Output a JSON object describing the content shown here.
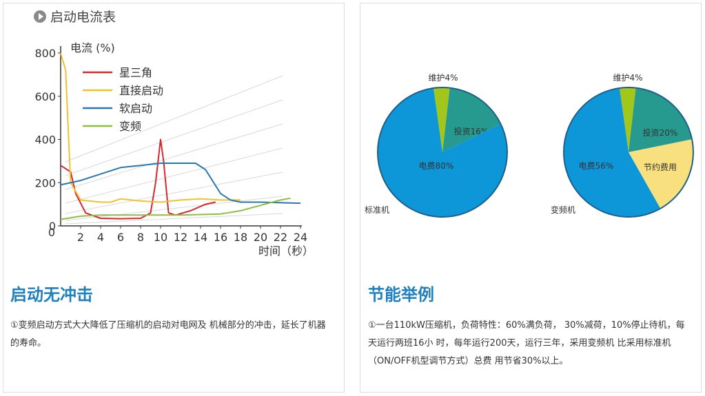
{
  "left": {
    "chart_heading": "启动电流表",
    "section_title": "启动无冲击",
    "description": "①变频启动方式大大降低了压缩机的启动对电网及 机械部分的冲击，延长了机器的寿命。"
  },
  "right": {
    "section_title": "节能举例",
    "description": "①一台110kW压缩机，负荷特性：60%满负荷， 30%减荷，10%停止待机，每天运行两班16小 时，每年运行200天，运行三年，采用变频机 比采用标准机（ON/OFF机型调节方式）总费 用节省30%以上。"
  },
  "chart_data": [
    {
      "type": "line",
      "title": "",
      "xlabel": "时间（秒）",
      "ylabel": "电流 (%)",
      "xlim": [
        0,
        24
      ],
      "ylim": [
        0,
        800
      ],
      "x_ticks": [
        "2",
        "4",
        "6",
        "8",
        "10",
        "12",
        "14",
        "16",
        "18",
        "20",
        "22",
        "24"
      ],
      "y_ticks": [
        "0",
        "200",
        "400",
        "600",
        "800"
      ],
      "legend_position": "top-left",
      "series": [
        {
          "name": "星三角",
          "color": "#d7262e",
          "points": [
            [
              0,
              280
            ],
            [
              1,
              250
            ],
            [
              1.5,
              150
            ],
            [
              2.5,
              60
            ],
            [
              4,
              35
            ],
            [
              6,
              33
            ],
            [
              8,
              35
            ],
            [
              9,
              60
            ],
            [
              9.5,
              200
            ],
            [
              10,
              400
            ],
            [
              10.3,
              300
            ],
            [
              10.8,
              60
            ],
            [
              11.5,
              50
            ],
            [
              13,
              70
            ],
            [
              14.5,
              100
            ],
            [
              15.5,
              110
            ]
          ]
        },
        {
          "name": "直接启动",
          "color": "#f2c12e",
          "points": [
            [
              0,
              800
            ],
            [
              0.5,
              720
            ],
            [
              0.8,
              400
            ],
            [
              1,
              200
            ],
            [
              2,
              120
            ],
            [
              4,
              110
            ],
            [
              5,
              110
            ],
            [
              6,
              125
            ],
            [
              8,
              115
            ],
            [
              10,
              110
            ],
            [
              12,
              120
            ],
            [
              14,
              125
            ],
            [
              16,
              120
            ],
            [
              18,
              120
            ]
          ]
        },
        {
          "name": "软启动",
          "color": "#2577b5",
          "points": [
            [
              0,
              190
            ],
            [
              2,
              210
            ],
            [
              4,
              240
            ],
            [
              6,
              270
            ],
            [
              8,
              280
            ],
            [
              10,
              290
            ],
            [
              12,
              290
            ],
            [
              13.5,
              290
            ],
            [
              14.5,
              260
            ],
            [
              16,
              150
            ],
            [
              17,
              120
            ],
            [
              18,
              110
            ],
            [
              20,
              110
            ],
            [
              24,
              105
            ]
          ]
        },
        {
          "name": "变频",
          "color": "#8cbf3f",
          "points": [
            [
              0,
              30
            ],
            [
              2,
              45
            ],
            [
              4,
              50
            ],
            [
              8,
              50
            ],
            [
              12,
              50
            ],
            [
              16,
              55
            ],
            [
              18,
              70
            ],
            [
              20,
              95
            ],
            [
              22,
              120
            ],
            [
              23,
              128
            ]
          ]
        }
      ]
    },
    {
      "type": "pie",
      "caption": "标准机",
      "slices": [
        {
          "label": "维护4%",
          "value": 4,
          "color": "#a3c61a"
        },
        {
          "label": "投资16%",
          "value": 16,
          "color": "#279a8f"
        },
        {
          "label": "电费80%",
          "value": 80,
          "color": "#0d96d8"
        }
      ]
    },
    {
      "type": "pie",
      "caption": "变频机",
      "slices": [
        {
          "label": "维护4%",
          "value": 4,
          "color": "#a3c61a"
        },
        {
          "label": "投资20%",
          "value": 20,
          "color": "#279a8f"
        },
        {
          "label": "节约费用",
          "value": 20,
          "color": "#f7e07d"
        },
        {
          "label": "电费56%",
          "value": 56,
          "color": "#0d96d8"
        }
      ]
    }
  ]
}
